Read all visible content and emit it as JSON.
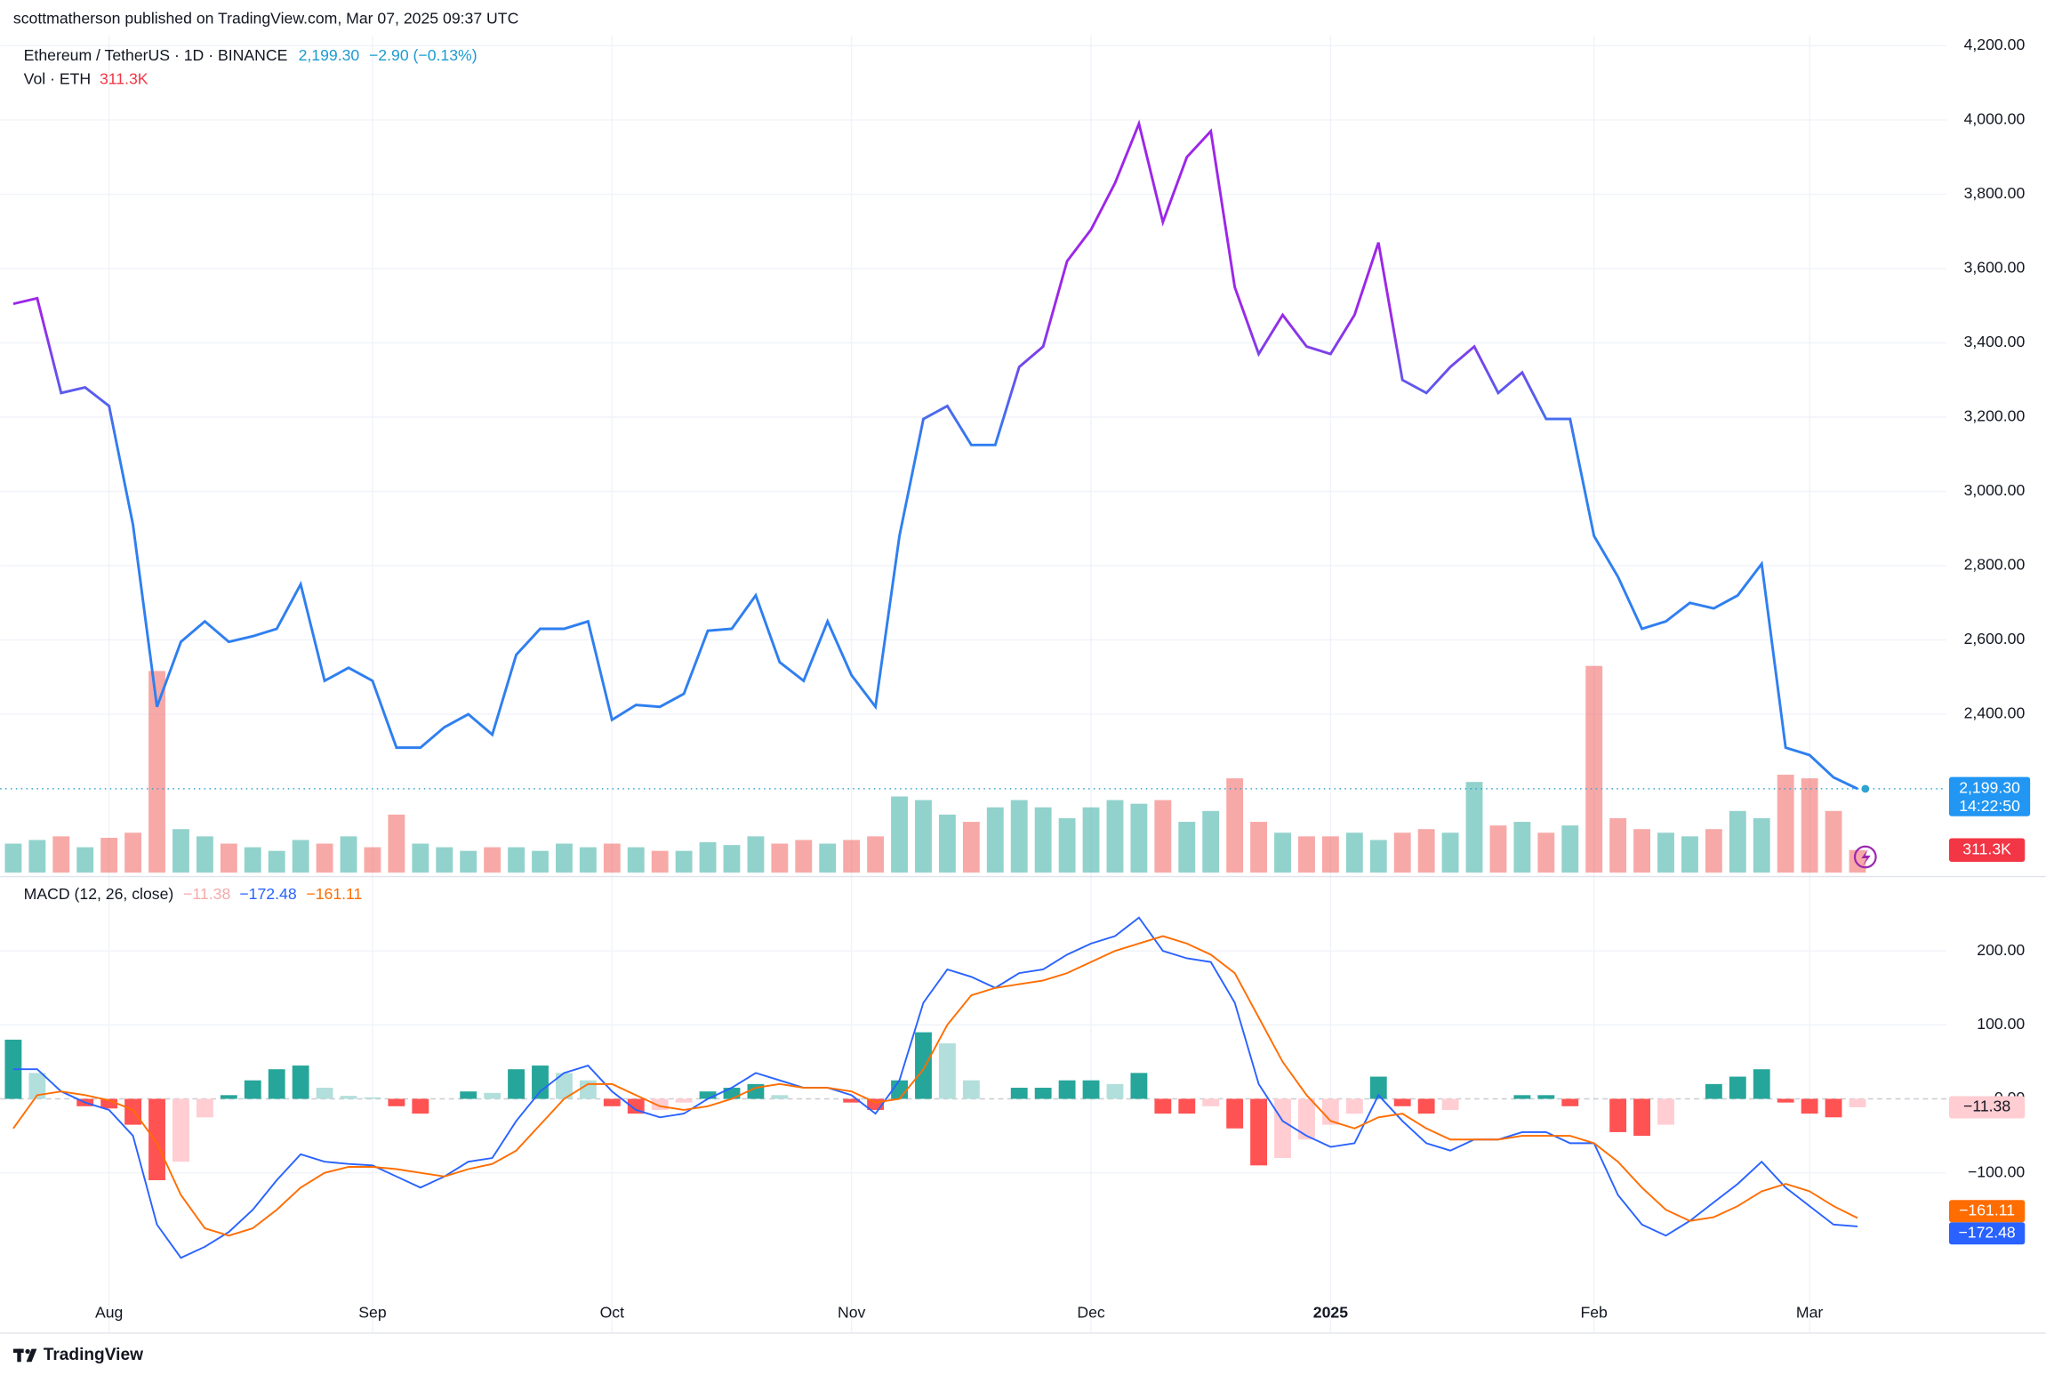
{
  "header": {
    "published": "scottmatherson published on TradingView.com, Mar 07, 2025 09:37 UTC",
    "footer": "TradingView"
  },
  "chart_data": [
    {
      "type": "line",
      "title": "Ethereum / TetherUS · 1D · BINANCE",
      "change": "−2.90 (−0.13%)",
      "countdown": "14:22:50",
      "series": [
        {
          "color": "#2f7ff0",
          "high_color": "#9c27e8",
          "values": [
            3505,
            3520,
            3265,
            3280,
            3230,
            2910,
            2420,
            2595,
            2650,
            2595,
            2610,
            2630,
            2750,
            2490,
            2525,
            2490,
            2310,
            2310,
            2365,
            2400,
            2345,
            2560,
            2630,
            2630,
            2650,
            2385,
            2425,
            2420,
            2455,
            2625,
            2630,
            2720,
            2540,
            2490,
            2650,
            2505,
            2420,
            2880,
            3195,
            3230,
            3125,
            3125,
            3335,
            3390,
            3620,
            3705,
            3830,
            3990,
            3725,
            3900,
            3970,
            3550,
            3370,
            3475,
            3390,
            3370,
            3475,
            3670,
            3300,
            3265,
            3335,
            3390,
            3265,
            3320,
            3195,
            3195,
            2880,
            2770,
            2630,
            2650,
            2700,
            2685,
            2720,
            2805,
            2310,
            2290,
            2230,
            2199.3
          ],
          "value_labels": [
            null,
            null,
            null,
            null,
            null,
            null,
            null,
            null,
            null,
            null,
            null,
            null,
            null,
            null,
            null,
            null,
            null,
            null,
            null,
            null,
            null,
            null,
            null,
            null,
            null,
            null,
            null,
            null,
            null,
            null,
            null,
            null,
            null,
            null,
            null,
            null,
            null,
            null,
            null,
            null,
            null,
            null,
            null,
            null,
            null,
            null,
            null,
            null,
            null,
            null,
            null,
            null,
            null,
            null,
            null,
            null,
            null,
            null,
            null,
            null,
            null,
            null,
            null,
            null,
            null,
            null,
            null,
            null,
            null,
            null,
            null,
            null,
            null,
            null,
            null,
            null,
            null,
            "2,199.30"
          ]
        }
      ],
      "ylim": [
        1970,
        4228
      ],
      "yticks": [
        {
          "value": 2400,
          "label": "2,400.00"
        },
        {
          "value": 2600,
          "label": "2,600.00"
        },
        {
          "value": 2800,
          "label": "2,800.00"
        },
        {
          "value": 3000,
          "label": "3,000.00"
        },
        {
          "value": 3200,
          "label": "3,200.00"
        },
        {
          "value": 3400,
          "label": "3,400.00"
        },
        {
          "value": 3600,
          "label": "3,600.00"
        },
        {
          "value": 3800,
          "label": "3,800.00"
        },
        {
          "value": 4000,
          "label": "4,000.00"
        },
        {
          "value": 4200,
          "label": "4,200.00"
        }
      ],
      "grid": true
    },
    {
      "type": "bar",
      "title": "Vol · ETH",
      "colors": [
        "#26a69a",
        "#ef5350"
      ],
      "values": [
        400,
        450,
        500,
        350,
        480,
        550,
        2780,
        600,
        500,
        400,
        350,
        300,
        450,
        400,
        500,
        350,
        800,
        400,
        350,
        300,
        350,
        350,
        300,
        400,
        350,
        400,
        350,
        300,
        300,
        420,
        380,
        500,
        400,
        450,
        400,
        450,
        500,
        1050,
        1000,
        800,
        700,
        900,
        1000,
        900,
        750,
        900,
        1000,
        950,
        1000,
        700,
        850,
        1300,
        700,
        550,
        500,
        500,
        550,
        450,
        550,
        600,
        550,
        1250,
        650,
        700,
        550,
        650,
        2850,
        750,
        600,
        550,
        500,
        600,
        850,
        750,
        1350,
        1300,
        850,
        311.3
      ],
      "value_labels": [
        null,
        null,
        null,
        null,
        null,
        null,
        null,
        null,
        null,
        null,
        null,
        null,
        null,
        null,
        null,
        null,
        null,
        null,
        null,
        null,
        null,
        null,
        null,
        null,
        null,
        null,
        null,
        null,
        null,
        null,
        null,
        null,
        null,
        null,
        null,
        null,
        null,
        null,
        null,
        null,
        null,
        null,
        null,
        null,
        null,
        null,
        null,
        null,
        null,
        null,
        null,
        null,
        null,
        null,
        null,
        null,
        null,
        null,
        null,
        null,
        null,
        null,
        null,
        null,
        null,
        null,
        null,
        null,
        null,
        null,
        null,
        null,
        null,
        null,
        null,
        null,
        null,
        "311.3K"
      ]
    },
    {
      "type": "macd",
      "title": "MACD (12, 26, close)",
      "categories": [
        null,
        null,
        null,
        null,
        "Aug",
        null,
        null,
        null,
        null,
        null,
        null,
        null,
        null,
        null,
        null,
        "Sep",
        null,
        null,
        null,
        null,
        null,
        null,
        null,
        null,
        null,
        "Oct",
        null,
        null,
        null,
        null,
        null,
        null,
        null,
        null,
        null,
        "Nov",
        null,
        null,
        null,
        null,
        null,
        null,
        null,
        null,
        null,
        "Dec",
        null,
        null,
        null,
        null,
        null,
        null,
        null,
        null,
        null,
        "2025",
        null,
        null,
        null,
        null,
        null,
        null,
        null,
        null,
        null,
        null,
        "Feb",
        null,
        null,
        null,
        null,
        null,
        null,
        null,
        null,
        "Mar",
        null,
        null
      ],
      "series": [
        {
          "type": "bar",
          "colors": [
            "#26a69a",
            "#b2dfdb",
            "#ffcdd2",
            "#ff5252"
          ],
          "values": [
            80,
            35,
            0,
            -10,
            -13,
            -35,
            -110,
            -85,
            -25,
            5,
            25,
            40,
            45,
            15,
            4,
            2,
            -10,
            -20,
            0,
            10,
            8,
            40,
            45,
            35,
            25,
            -10,
            -20,
            -15,
            -5,
            10,
            15,
            20,
            5,
            0,
            0,
            -5,
            -15,
            25,
            90,
            75,
            25,
            0,
            15,
            15,
            25,
            25,
            20,
            35,
            -20,
            -20,
            -10,
            -40,
            -90,
            -80,
            -55,
            -35,
            -20,
            30,
            -10,
            -20,
            -15,
            0,
            0,
            5,
            5,
            -10,
            0,
            -45,
            -50,
            -35,
            0,
            20,
            30,
            40,
            -5,
            -20,
            -25,
            -11.38
          ],
          "value_labels": [
            null,
            null,
            null,
            null,
            null,
            null,
            null,
            null,
            null,
            null,
            null,
            null,
            null,
            null,
            null,
            null,
            null,
            null,
            null,
            null,
            null,
            null,
            null,
            null,
            null,
            null,
            null,
            null,
            null,
            null,
            null,
            null,
            null,
            null,
            null,
            null,
            null,
            null,
            null,
            null,
            null,
            null,
            null,
            null,
            null,
            null,
            null,
            null,
            null,
            null,
            null,
            null,
            null,
            null,
            null,
            null,
            null,
            null,
            null,
            null,
            null,
            null,
            null,
            null,
            null,
            null,
            null,
            null,
            null,
            null,
            null,
            null,
            null,
            null,
            null,
            null,
            null,
            "−11.38"
          ]
        },
        {
          "type": "line",
          "color": "#2962ff",
          "values": [
            40,
            40,
            10,
            -5,
            -15,
            -50,
            -170,
            -215,
            -200,
            -180,
            -150,
            -110,
            -75,
            -85,
            -88,
            -90,
            -105,
            -120,
            -105,
            -85,
            -80,
            -30,
            10,
            35,
            45,
            10,
            -15,
            -25,
            -20,
            0,
            15,
            35,
            25,
            15,
            15,
            5,
            -20,
            25,
            130,
            175,
            165,
            150,
            170,
            175,
            195,
            210,
            220,
            245,
            200,
            190,
            185,
            130,
            20,
            -30,
            -50,
            -65,
            -60,
            5,
            -30,
            -60,
            -70,
            -55,
            -55,
            -45,
            -45,
            -60,
            -60,
            -130,
            -170,
            -185,
            -165,
            -140,
            -115,
            -85,
            -120,
            -145,
            -170,
            -172.48
          ],
          "value_labels": [
            null,
            null,
            null,
            null,
            null,
            null,
            null,
            null,
            null,
            null,
            null,
            null,
            null,
            null,
            null,
            null,
            null,
            null,
            null,
            null,
            null,
            null,
            null,
            null,
            null,
            null,
            null,
            null,
            null,
            null,
            null,
            null,
            null,
            null,
            null,
            null,
            null,
            null,
            null,
            null,
            null,
            null,
            null,
            null,
            null,
            null,
            null,
            null,
            null,
            null,
            null,
            null,
            null,
            null,
            null,
            null,
            null,
            null,
            null,
            null,
            null,
            null,
            null,
            null,
            null,
            null,
            null,
            null,
            null,
            null,
            null,
            null,
            null,
            null,
            null,
            null,
            null,
            "−172.48"
          ]
        },
        {
          "type": "line",
          "color": "#ff6d00",
          "values": [
            -40,
            5,
            10,
            5,
            -2,
            -15,
            -60,
            -130,
            -175,
            -185,
            -175,
            -150,
            -120,
            -100,
            -92,
            -92,
            -95,
            -100,
            -105,
            -95,
            -88,
            -70,
            -35,
            0,
            20,
            20,
            5,
            -10,
            -15,
            -10,
            0,
            15,
            20,
            15,
            15,
            10,
            -5,
            0,
            40,
            100,
            140,
            150,
            155,
            160,
            170,
            185,
            200,
            210,
            220,
            210,
            195,
            170,
            110,
            50,
            5,
            -30,
            -40,
            -25,
            -20,
            -40,
            -55,
            -55,
            -55,
            -50,
            -50,
            -50,
            -60,
            -85,
            -120,
            -150,
            -165,
            -160,
            -145,
            -125,
            -115,
            -125,
            -145,
            -161.11
          ],
          "value_labels": [
            null,
            null,
            null,
            null,
            null,
            null,
            null,
            null,
            null,
            null,
            null,
            null,
            null,
            null,
            null,
            null,
            null,
            null,
            null,
            null,
            null,
            null,
            null,
            null,
            null,
            null,
            null,
            null,
            null,
            null,
            null,
            null,
            null,
            null,
            null,
            null,
            null,
            null,
            null,
            null,
            null,
            null,
            null,
            null,
            null,
            null,
            null,
            null,
            null,
            null,
            null,
            null,
            null,
            null,
            null,
            null,
            null,
            null,
            null,
            null,
            null,
            null,
            null,
            null,
            null,
            null,
            null,
            null,
            null,
            null,
            null,
            null,
            null,
            null,
            null,
            null,
            null,
            "−161.11"
          ]
        }
      ],
      "ylim": [
        -315,
        297
      ],
      "yticks": [
        {
          "value": 200,
          "label": "200.00"
        },
        {
          "value": 100,
          "label": "100.00"
        },
        {
          "value": 0,
          "label": "0.00"
        },
        {
          "value": -100,
          "label": "−100.00"
        }
      ],
      "grid": true
    }
  ]
}
